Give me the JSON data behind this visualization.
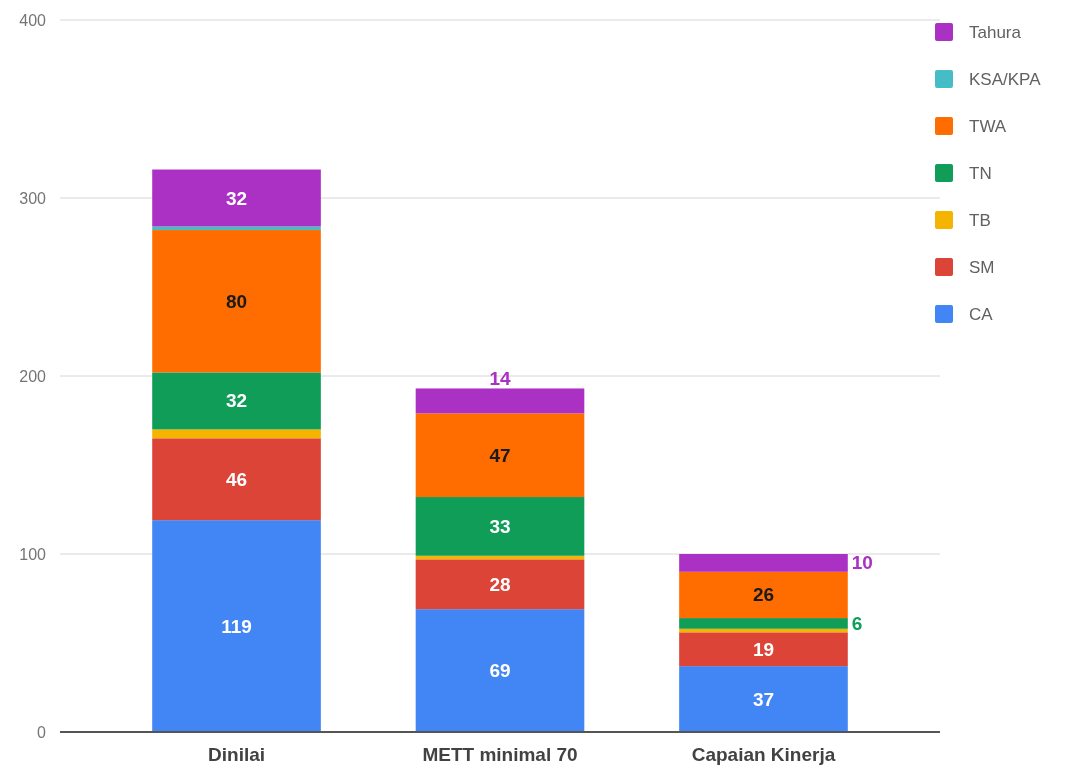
{
  "chart_data": {
    "type": "bar",
    "stacked": true,
    "categories": [
      "Dinilai",
      "METT minimal 70",
      "Capaian Kinerja"
    ],
    "series": [
      {
        "name": "CA",
        "color": "#4285f4",
        "values": [
          119,
          69,
          37
        ],
        "value_labels": [
          "119",
          "69",
          "37"
        ]
      },
      {
        "name": "SM",
        "color": "#db4437",
        "values": [
          46,
          28,
          19
        ],
        "value_labels": [
          "46",
          "28",
          "19"
        ]
      },
      {
        "name": "TB",
        "color": "#f4b400",
        "values": [
          5,
          2,
          2
        ]
      },
      {
        "name": "TN",
        "color": "#0f9d58",
        "values": [
          32,
          33,
          6
        ],
        "value_labels": [
          "32",
          "33",
          "6"
        ]
      },
      {
        "name": "TWA",
        "color": "#ff6d01",
        "values": [
          80,
          47,
          26
        ],
        "value_labels": [
          "80",
          "47",
          "26"
        ]
      },
      {
        "name": "KSA/KPA",
        "color": "#46bdc6",
        "values": [
          2,
          0,
          0
        ]
      },
      {
        "name": "Tahura",
        "color": "#ab30c4",
        "values": [
          32,
          14,
          10
        ],
        "value_labels": [
          "32",
          "14",
          "10"
        ]
      }
    ],
    "ylim": [
      0,
      400
    ],
    "yticks": [
      0,
      100,
      200,
      300,
      400
    ],
    "grid": "y",
    "legend": "right"
  }
}
